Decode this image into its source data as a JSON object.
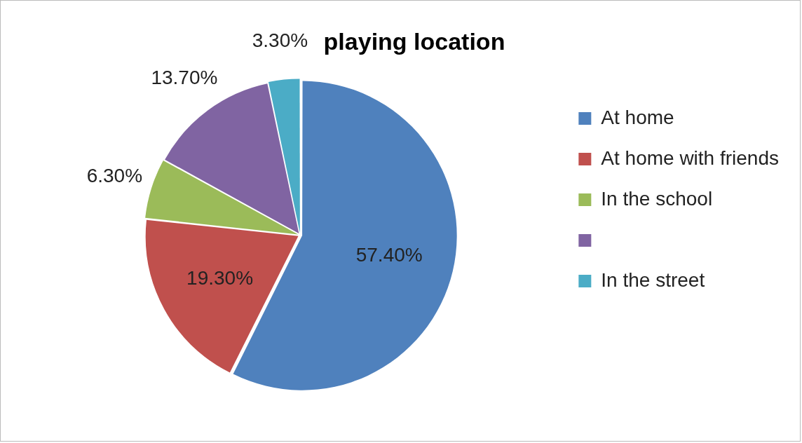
{
  "chart_data": {
    "type": "pie",
    "title": "playing location",
    "categories": [
      "At home",
      "At home with friends",
      "In the school",
      null,
      "In the street"
    ],
    "values": [
      57.4,
      19.3,
      6.3,
      13.7,
      3.3
    ],
    "colors": [
      "#4f81bd",
      "#c0504d",
      "#9bbb59",
      "#8064a2",
      "#4bacc6"
    ],
    "value_labels": [
      "57.40%",
      "19.30%",
      "6.30%",
      "13.70%",
      "3.30%"
    ],
    "legend": "right"
  }
}
